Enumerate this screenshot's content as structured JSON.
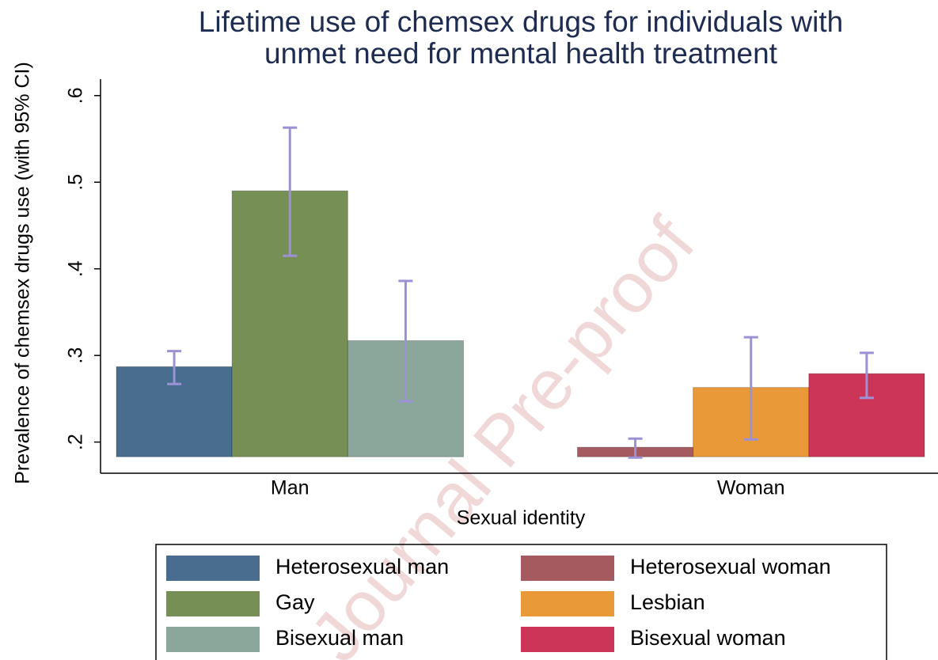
{
  "chart_data": {
    "type": "bar",
    "title": [
      "Lifetime use of chemsex drugs for individuals with",
      "unmet need for mental health treatment"
    ],
    "ylabel": "Prevalence of chemsex drugs use (with 95% CI)",
    "xlabel": "Sexual identity",
    "watermark": "Journal Pre-proof",
    "categories": [
      "Man",
      "Woman"
    ],
    "ylim": [
      0.164,
      0.619
    ],
    "yticks": [
      {
        "value": 0.2,
        "label": ".2"
      },
      {
        "value": 0.3,
        "label": ".3"
      },
      {
        "value": 0.4,
        "label": ".4"
      },
      {
        "value": 0.5,
        "label": ".5"
      },
      {
        "value": 0.6,
        "label": ".6"
      }
    ],
    "bar_base": 0.183,
    "grid": false,
    "errorbar_color": "#9b92d6",
    "series": [
      {
        "name": "Heterosexual man",
        "color": "#486d8e",
        "values": [
          0.287,
          null
        ],
        "ci_low": [
          0.267,
          null
        ],
        "ci_high": [
          0.305,
          null
        ]
      },
      {
        "name": "Gay",
        "color": "#768f54",
        "values": [
          0.49,
          null
        ],
        "ci_low": [
          0.415,
          null
        ],
        "ci_high": [
          0.563,
          null
        ]
      },
      {
        "name": "Bisexual man",
        "color": "#8ba69b",
        "values": [
          0.317,
          null
        ],
        "ci_low": [
          0.247,
          null
        ],
        "ci_high": [
          0.386,
          null
        ]
      },
      {
        "name": "Heterosexual woman",
        "color": "#a55a60",
        "values": [
          null,
          0.194
        ],
        "ci_low": [
          null,
          0.182
        ],
        "ci_high": [
          null,
          0.204
        ]
      },
      {
        "name": "Lesbian",
        "color": "#e99938",
        "values": [
          null,
          0.263
        ],
        "ci_low": [
          null,
          0.203
        ],
        "ci_high": [
          null,
          0.321
        ]
      },
      {
        "name": "Bisexual woman",
        "color": "#cc3558",
        "values": [
          null,
          0.279
        ],
        "ci_low": [
          null,
          0.251
        ],
        "ci_high": [
          null,
          0.303
        ]
      }
    ]
  }
}
